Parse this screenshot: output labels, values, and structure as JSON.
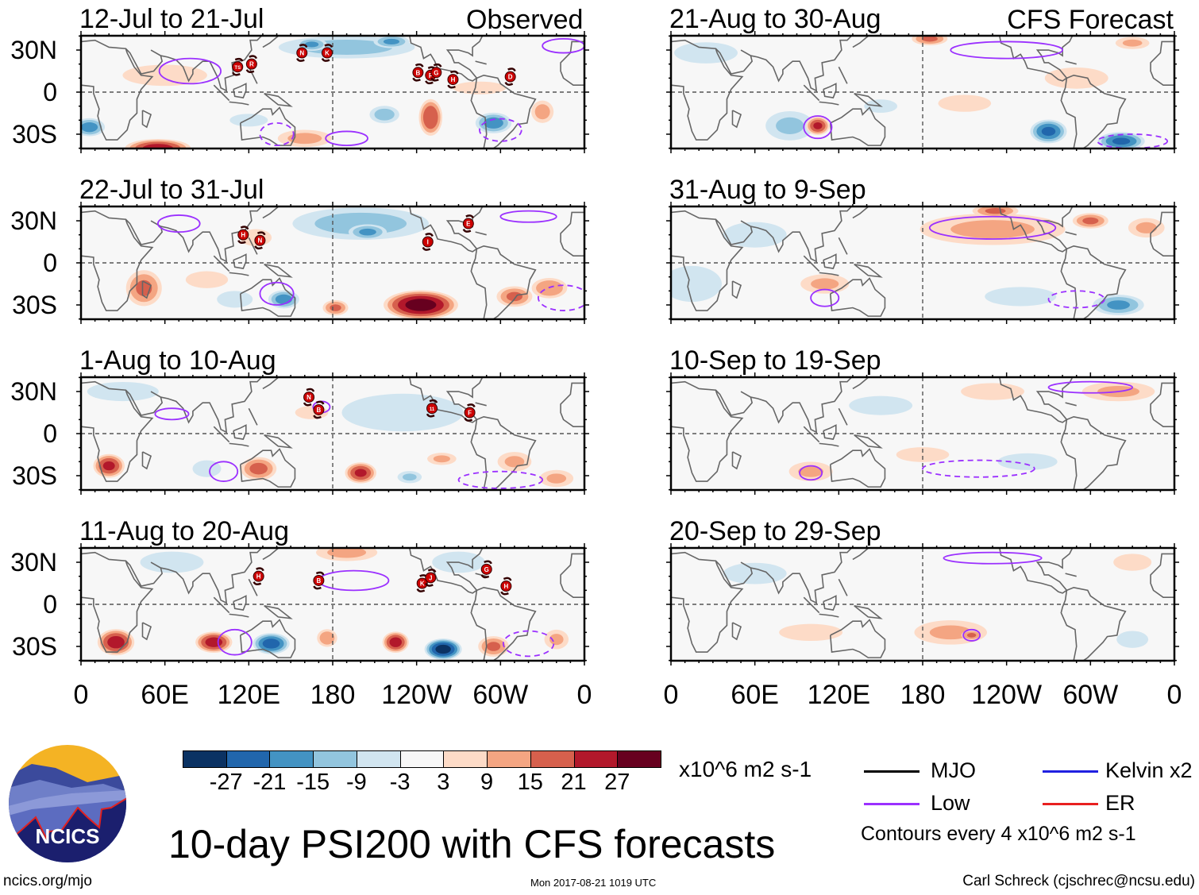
{
  "header": {
    "observed_label": "Observed",
    "forecast_label": "CFS Forecast"
  },
  "axes": {
    "lat_labels": [
      "30N",
      "0",
      "30S"
    ],
    "lon_labels": [
      "0",
      "60E",
      "120E",
      "180",
      "120W",
      "60W",
      "0"
    ]
  },
  "colors": {
    "levels": [
      "#0b3263",
      "#2166ac",
      "#4393c3",
      "#92c5de",
      "#d1e5f0",
      "#f7f7f7",
      "#fddbc7",
      "#f4a582",
      "#d6604d",
      "#b2182b",
      "#67001f"
    ],
    "low_contour": "#9b30ff",
    "mjo": "#000000",
    "kelvin": "#2020e0",
    "er": "#e82020",
    "coast": "#666666",
    "storm": "#cc0000"
  },
  "colorbar": {
    "labels": [
      "-27",
      "-21",
      "-15",
      "-9",
      "-3",
      "3",
      "9",
      "15",
      "21",
      "27"
    ],
    "units": "x10^6 m2 s-1"
  },
  "legend": {
    "mjo": "MJO",
    "kelvin": "Kelvin x2",
    "low": "Low",
    "er": "ER",
    "contour_note": "Contours every 4 x10^6 m2 s-1"
  },
  "footer": {
    "title": "10-day PSI200 with CFS forecasts",
    "url": "ncics.org/mjo",
    "timestamp": "Mon 2017-08-21 1019 UTC",
    "author": "Carl Schreck (cjschrec@ncsu.edu)",
    "logo_text": "NCICS"
  },
  "chart_data": {
    "type": "heatmap",
    "variable": "PSI200 anomaly",
    "units": "x10^6 m2 s-1",
    "lon_range": [
      0,
      360
    ],
    "lat_range": [
      -40,
      40
    ],
    "panels": [
      {
        "title": "12-Jul to 21-Jul",
        "kind": "observed",
        "anomalies": [
          {
            "lon": 190,
            "lat": 32,
            "rx": 55,
            "ry": 9,
            "value": -12
          },
          {
            "lon": 165,
            "lat": 34,
            "rx": 12,
            "ry": 5,
            "value": -16
          },
          {
            "lon": 222,
            "lat": 36,
            "rx": 14,
            "ry": 5,
            "value": -16
          },
          {
            "lon": 250,
            "lat": -18,
            "rx": 9,
            "ry": 14,
            "value": 21
          },
          {
            "lon": 217,
            "lat": -16,
            "rx": 12,
            "ry": 7,
            "value": -12
          },
          {
            "lon": 295,
            "lat": -22,
            "rx": 14,
            "ry": 8,
            "value": -18
          },
          {
            "lon": 330,
            "lat": -14,
            "rx": 9,
            "ry": 9,
            "value": 12
          },
          {
            "lon": 6,
            "lat": -25,
            "rx": 12,
            "ry": 7,
            "value": -18
          },
          {
            "lon": 55,
            "lat": -40,
            "rx": 25,
            "ry": 7,
            "value": 24
          },
          {
            "lon": 60,
            "lat": 12,
            "rx": 40,
            "ry": 10,
            "value": 5
          },
          {
            "lon": 160,
            "lat": -33,
            "rx": 22,
            "ry": 7,
            "value": 11
          },
          {
            "lon": 285,
            "lat": 3,
            "rx": 25,
            "ry": 6,
            "value": 5
          },
          {
            "lon": 120,
            "lat": -20,
            "rx": 18,
            "ry": 6,
            "value": -5
          }
        ],
        "low_contours": [
          {
            "lon": 78,
            "lat": 15,
            "rx": 22,
            "ry": 9,
            "dashed": false
          },
          {
            "lon": 190,
            "lat": -33,
            "rx": 15,
            "ry": 5,
            "dashed": false
          },
          {
            "lon": 140,
            "lat": -30,
            "rx": 12,
            "ry": 8,
            "dashed": true
          },
          {
            "lon": 300,
            "lat": -27,
            "rx": 15,
            "ry": 8,
            "dashed": true
          },
          {
            "lon": 345,
            "lat": 33,
            "rx": 15,
            "ry": 5,
            "dashed": false
          }
        ],
        "storms": [
          {
            "id": "TS",
            "lon": 112,
            "lat": 18
          },
          {
            "id": "R",
            "lon": 122,
            "lat": 20
          },
          {
            "id": "N",
            "lon": 158,
            "lat": 28
          },
          {
            "id": "K",
            "lon": 176,
            "lat": 28
          },
          {
            "id": "B",
            "lon": 241,
            "lat": 14
          },
          {
            "id": "F",
            "lon": 250,
            "lat": 12
          },
          {
            "id": "G",
            "lon": 254,
            "lat": 14
          },
          {
            "id": "H",
            "lon": 266,
            "lat": 9
          },
          {
            "id": "D",
            "lon": 307,
            "lat": 11
          }
        ]
      },
      {
        "title": "22-Jul to 31-Jul",
        "kind": "observed",
        "anomalies": [
          {
            "lon": 200,
            "lat": 28,
            "rx": 55,
            "ry": 13,
            "value": -12
          },
          {
            "lon": 205,
            "lat": 22,
            "rx": 15,
            "ry": 6,
            "value": -16
          },
          {
            "lon": 243,
            "lat": -30,
            "rx": 28,
            "ry": 11,
            "value": 30
          },
          {
            "lon": 310,
            "lat": -24,
            "rx": 14,
            "ry": 8,
            "value": 16
          },
          {
            "lon": 335,
            "lat": -18,
            "rx": 14,
            "ry": 8,
            "value": 15
          },
          {
            "lon": 145,
            "lat": -26,
            "rx": 12,
            "ry": 7,
            "value": -18
          },
          {
            "lon": 45,
            "lat": -18,
            "rx": 14,
            "ry": 14,
            "value": 16
          },
          {
            "lon": 182,
            "lat": -32,
            "rx": 10,
            "ry": 6,
            "value": 16
          },
          {
            "lon": 110,
            "lat": -26,
            "rx": 15,
            "ry": 7,
            "value": -9
          },
          {
            "lon": 125,
            "lat": 18,
            "rx": 15,
            "ry": 8,
            "value": 5
          },
          {
            "lon": 90,
            "lat": -12,
            "rx": 20,
            "ry": 8,
            "value": 5
          }
        ],
        "low_contours": [
          {
            "lon": 70,
            "lat": 28,
            "rx": 15,
            "ry": 6,
            "dashed": false
          },
          {
            "lon": 140,
            "lat": -22,
            "rx": 12,
            "ry": 8,
            "dashed": false
          },
          {
            "lon": 345,
            "lat": -25,
            "rx": 18,
            "ry": 9,
            "dashed": true
          },
          {
            "lon": 320,
            "lat": 33,
            "rx": 20,
            "ry": 4,
            "dashed": false
          }
        ],
        "storms": [
          {
            "id": "H",
            "lon": 116,
            "lat": 20
          },
          {
            "id": "N",
            "lon": 128,
            "lat": 16
          },
          {
            "id": "I",
            "lon": 248,
            "lat": 15
          },
          {
            "id": "E",
            "lon": 277,
            "lat": 28
          }
        ]
      },
      {
        "title": "1-Aug to 10-Aug",
        "kind": "observed",
        "anomalies": [
          {
            "lon": 230,
            "lat": 15,
            "rx": 55,
            "ry": 17,
            "value": -6
          },
          {
            "lon": 165,
            "lat": 15,
            "rx": 15,
            "ry": 6,
            "value": 6
          },
          {
            "lon": 20,
            "lat": -23,
            "rx": 12,
            "ry": 9,
            "value": 22
          },
          {
            "lon": 90,
            "lat": -25,
            "rx": 12,
            "ry": 7,
            "value": -9
          },
          {
            "lon": 127,
            "lat": -25,
            "rx": 14,
            "ry": 9,
            "value": 17
          },
          {
            "lon": 200,
            "lat": -28,
            "rx": 12,
            "ry": 8,
            "value": 22
          },
          {
            "lon": 235,
            "lat": -31,
            "rx": 10,
            "ry": 5,
            "value": -10
          },
          {
            "lon": 258,
            "lat": -18,
            "rx": 12,
            "ry": 5,
            "value": 10
          },
          {
            "lon": 310,
            "lat": -20,
            "rx": 14,
            "ry": 8,
            "value": 10
          },
          {
            "lon": 340,
            "lat": -32,
            "rx": 14,
            "ry": 7,
            "value": 10
          },
          {
            "lon": 30,
            "lat": 30,
            "rx": 30,
            "ry": 8,
            "value": -9
          }
        ],
        "low_contours": [
          {
            "lon": 65,
            "lat": 14,
            "rx": 12,
            "ry": 4,
            "dashed": false
          },
          {
            "lon": 102,
            "lat": -27,
            "rx": 10,
            "ry": 7,
            "dashed": false
          },
          {
            "lon": 172,
            "lat": 19,
            "rx": 6,
            "ry": 4,
            "dashed": false
          },
          {
            "lon": 300,
            "lat": -33,
            "rx": 30,
            "ry": 6,
            "dashed": true
          }
        ],
        "storms": [
          {
            "id": "N",
            "lon": 163,
            "lat": 26
          },
          {
            "id": "B",
            "lon": 170,
            "lat": 17
          },
          {
            "id": "11",
            "lon": 251,
            "lat": 18
          },
          {
            "id": "F",
            "lon": 278,
            "lat": 15
          }
        ]
      },
      {
        "title": "11-Aug to 20-Aug",
        "kind": "observed",
        "anomalies": [
          {
            "lon": 25,
            "lat": -27,
            "rx": 14,
            "ry": 10,
            "value": 24
          },
          {
            "lon": 95,
            "lat": -27,
            "rx": 14,
            "ry": 8,
            "value": 24
          },
          {
            "lon": 136,
            "lat": -28,
            "rx": 14,
            "ry": 8,
            "value": -24
          },
          {
            "lon": 176,
            "lat": -24,
            "rx": 8,
            "ry": 7,
            "value": 14
          },
          {
            "lon": 225,
            "lat": -27,
            "rx": 10,
            "ry": 8,
            "value": 24
          },
          {
            "lon": 259,
            "lat": -32,
            "rx": 14,
            "ry": 8,
            "value": -30
          },
          {
            "lon": 295,
            "lat": -30,
            "rx": 12,
            "ry": 8,
            "value": 16
          },
          {
            "lon": 340,
            "lat": -25,
            "rx": 10,
            "ry": 8,
            "value": 10
          },
          {
            "lon": 190,
            "lat": 37,
            "rx": 25,
            "ry": 7,
            "value": 11
          },
          {
            "lon": 65,
            "lat": 30,
            "rx": 30,
            "ry": 10,
            "value": -5
          },
          {
            "lon": 270,
            "lat": 30,
            "rx": 25,
            "ry": 10,
            "value": -5
          }
        ],
        "low_contours": [
          {
            "lon": 110,
            "lat": -27,
            "rx": 12,
            "ry": 9,
            "dashed": false
          },
          {
            "lon": 195,
            "lat": 17,
            "rx": 25,
            "ry": 7,
            "dashed": false
          },
          {
            "lon": 320,
            "lat": -28,
            "rx": 18,
            "ry": 9,
            "dashed": true
          }
        ],
        "storms": [
          {
            "id": "H",
            "lon": 127,
            "lat": 20
          },
          {
            "id": "B",
            "lon": 170,
            "lat": 17
          },
          {
            "id": "K",
            "lon": 244,
            "lat": 15
          },
          {
            "id": "J",
            "lon": 250,
            "lat": 19
          },
          {
            "id": "G",
            "lon": 290,
            "lat": 25
          },
          {
            "id": "H",
            "lon": 304,
            "lat": 13
          }
        ]
      },
      {
        "title": "21-Aug to 30-Aug",
        "kind": "forecast",
        "anomalies": [
          {
            "lon": 85,
            "lat": -24,
            "rx": 20,
            "ry": 12,
            "value": -10
          },
          {
            "lon": 105,
            "lat": -24,
            "rx": 9,
            "ry": 7,
            "value": 22
          },
          {
            "lon": 270,
            "lat": -28,
            "rx": 14,
            "ry": 9,
            "value": -22
          },
          {
            "lon": 322,
            "lat": -35,
            "rx": 18,
            "ry": 7,
            "value": -22
          },
          {
            "lon": 210,
            "lat": -8,
            "rx": 25,
            "ry": 8,
            "value": 5
          },
          {
            "lon": 290,
            "lat": 10,
            "rx": 30,
            "ry": 10,
            "value": 5
          },
          {
            "lon": 185,
            "lat": 38,
            "rx": 14,
            "ry": 5,
            "value": 16
          },
          {
            "lon": 330,
            "lat": 35,
            "rx": 14,
            "ry": 5,
            "value": 10
          },
          {
            "lon": 25,
            "lat": 28,
            "rx": 30,
            "ry": 10,
            "value": -5
          },
          {
            "lon": 150,
            "lat": -10,
            "rx": 15,
            "ry": 6,
            "value": -6
          }
        ],
        "low_contours": [
          {
            "lon": 105,
            "lat": -25,
            "rx": 10,
            "ry": 8,
            "dashed": false
          },
          {
            "lon": 240,
            "lat": 30,
            "rx": 40,
            "ry": 6,
            "dashed": false
          },
          {
            "lon": 330,
            "lat": -35,
            "rx": 25,
            "ry": 5,
            "dashed": true
          }
        ],
        "storms": []
      },
      {
        "title": "31-Aug to 9-Sep",
        "kind": "forecast",
        "anomalies": [
          {
            "lon": 230,
            "lat": 24,
            "rx": 60,
            "ry": 13,
            "value": 10
          },
          {
            "lon": 232,
            "lat": 37,
            "rx": 18,
            "ry": 5,
            "value": 16
          },
          {
            "lon": 300,
            "lat": 30,
            "rx": 14,
            "ry": 6,
            "value": 16
          },
          {
            "lon": 15,
            "lat": -15,
            "rx": 25,
            "ry": 15,
            "value": -9
          },
          {
            "lon": 320,
            "lat": -30,
            "rx": 20,
            "ry": 8,
            "value": -16
          },
          {
            "lon": 110,
            "lat": -15,
            "rx": 20,
            "ry": 8,
            "value": 10
          },
          {
            "lon": 250,
            "lat": -24,
            "rx": 30,
            "ry": 8,
            "value": -9
          },
          {
            "lon": 340,
            "lat": 25,
            "rx": 15,
            "ry": 8,
            "value": 10
          },
          {
            "lon": 60,
            "lat": 20,
            "rx": 30,
            "ry": 12,
            "value": -5
          }
        ],
        "low_contours": [
          {
            "lon": 230,
            "lat": 25,
            "rx": 45,
            "ry": 8,
            "dashed": false
          },
          {
            "lon": 110,
            "lat": -25,
            "rx": 10,
            "ry": 6,
            "dashed": false
          },
          {
            "lon": 290,
            "lat": -26,
            "rx": 20,
            "ry": 6,
            "dashed": true
          }
        ],
        "storms": []
      },
      {
        "title": "10-Sep to 19-Sep",
        "kind": "forecast",
        "anomalies": [
          {
            "lon": 320,
            "lat": 30,
            "rx": 30,
            "ry": 8,
            "value": 10
          },
          {
            "lon": 100,
            "lat": -27,
            "rx": 18,
            "ry": 8,
            "value": 10
          },
          {
            "lon": 255,
            "lat": -20,
            "rx": 25,
            "ry": 7,
            "value": -9
          },
          {
            "lon": 180,
            "lat": -15,
            "rx": 25,
            "ry": 7,
            "value": 5
          },
          {
            "lon": 150,
            "lat": 20,
            "rx": 30,
            "ry": 9,
            "value": -5
          },
          {
            "lon": 230,
            "lat": 30,
            "rx": 30,
            "ry": 8,
            "value": 5
          }
        ],
        "low_contours": [
          {
            "lon": 100,
            "lat": -28,
            "rx": 8,
            "ry": 5,
            "dashed": false
          },
          {
            "lon": 300,
            "lat": 33,
            "rx": 30,
            "ry": 4,
            "dashed": false
          },
          {
            "lon": 220,
            "lat": -25,
            "rx": 40,
            "ry": 6,
            "dashed": true
          }
        ],
        "storms": []
      },
      {
        "title": "20-Sep to 29-Sep",
        "kind": "forecast",
        "anomalies": [
          {
            "lon": 200,
            "lat": -20,
            "rx": 30,
            "ry": 10,
            "value": 10
          },
          {
            "lon": 215,
            "lat": -22,
            "rx": 8,
            "ry": 4,
            "value": 16
          },
          {
            "lon": 100,
            "lat": -20,
            "rx": 30,
            "ry": 8,
            "value": 5
          },
          {
            "lon": 60,
            "lat": 22,
            "rx": 30,
            "ry": 10,
            "value": -5
          },
          {
            "lon": 330,
            "lat": 30,
            "rx": 18,
            "ry": 8,
            "value": 5
          },
          {
            "lon": 330,
            "lat": -25,
            "rx": 15,
            "ry": 8,
            "value": -5
          }
        ],
        "low_contours": [
          {
            "lon": 215,
            "lat": -22,
            "rx": 6,
            "ry": 4,
            "dashed": false
          },
          {
            "lon": 230,
            "lat": 33,
            "rx": 35,
            "ry": 4,
            "dashed": false
          }
        ],
        "storms": []
      }
    ]
  }
}
